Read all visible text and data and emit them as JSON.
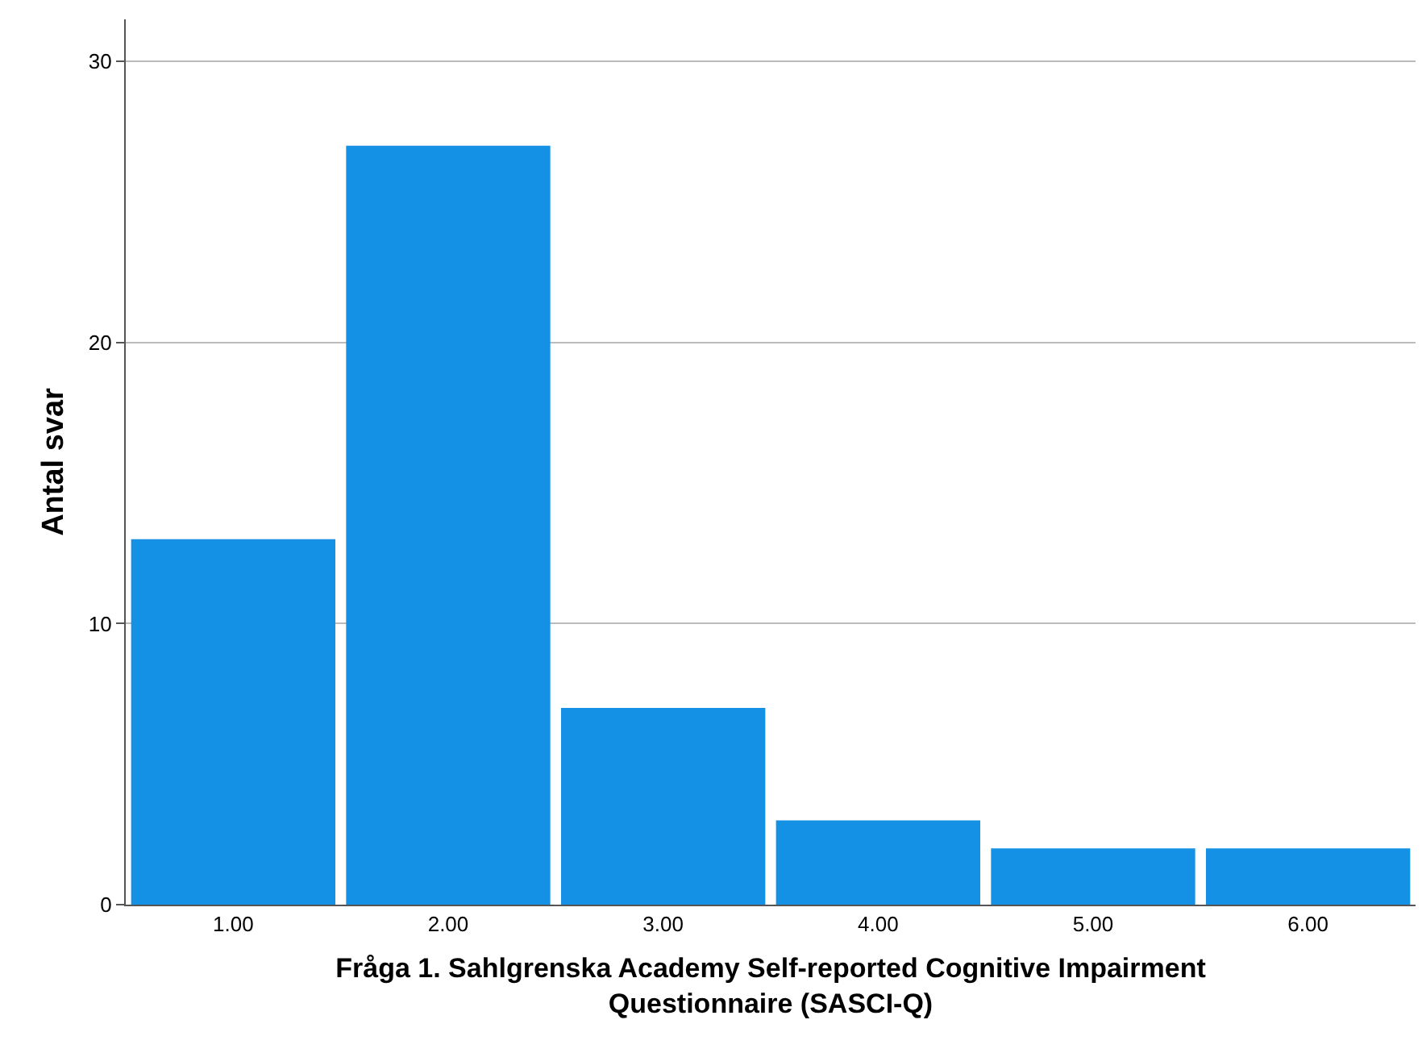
{
  "chart_data": {
    "type": "bar",
    "xlabel": "Fråga 1. Sahlgrenska Academy Self-reported Cognitive Impairment\nQuestionnaire (SASCI-Q)",
    "ylabel": "Antal svar",
    "categories": [
      "1.00",
      "2.00",
      "3.00",
      "4.00",
      "5.00",
      "6.00"
    ],
    "values": [
      13,
      27,
      7,
      3,
      2,
      2
    ],
    "color": "#1490e4",
    "ylim": [
      0,
      31.5
    ],
    "yticks": [
      0,
      10,
      20,
      30
    ],
    "grid": "y",
    "legend": false
  }
}
